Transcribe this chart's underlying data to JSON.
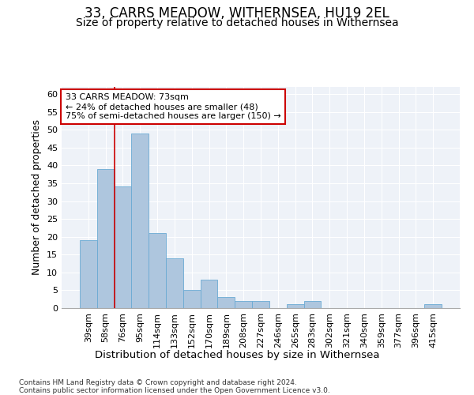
{
  "title": "33, CARRS MEADOW, WITHERNSEA, HU19 2EL",
  "subtitle": "Size of property relative to detached houses in Withernsea",
  "xlabel": "Distribution of detached houses by size in Withernsea",
  "ylabel": "Number of detached properties",
  "categories": [
    "39sqm",
    "58sqm",
    "76sqm",
    "95sqm",
    "114sqm",
    "133sqm",
    "152sqm",
    "170sqm",
    "189sqm",
    "208sqm",
    "227sqm",
    "246sqm",
    "265sqm",
    "283sqm",
    "302sqm",
    "321sqm",
    "340sqm",
    "359sqm",
    "377sqm",
    "396sqm",
    "415sqm"
  ],
  "values": [
    19,
    39,
    34,
    49,
    21,
    14,
    5,
    8,
    3,
    2,
    2,
    0,
    1,
    2,
    0,
    0,
    0,
    0,
    0,
    0,
    1
  ],
  "bar_color": "#aec6de",
  "bar_edge_color": "#6aaad4",
  "line_color": "#cc0000",
  "line_x_index": 1.5,
  "annotation_text": "33 CARRS MEADOW: 73sqm\n← 24% of detached houses are smaller (48)\n75% of semi-detached houses are larger (150) →",
  "annotation_box_facecolor": "#ffffff",
  "annotation_box_edgecolor": "#cc0000",
  "ylim": [
    0,
    62
  ],
  "yticks": [
    0,
    5,
    10,
    15,
    20,
    25,
    30,
    35,
    40,
    45,
    50,
    55,
    60
  ],
  "footer": "Contains HM Land Registry data © Crown copyright and database right 2024.\nContains public sector information licensed under the Open Government Licence v3.0.",
  "background_color": "#eef2f8",
  "title_fontsize": 12,
  "subtitle_fontsize": 10,
  "xlabel_fontsize": 9.5,
  "ylabel_fontsize": 9,
  "tick_fontsize": 8,
  "annotation_fontsize": 8,
  "footer_fontsize": 6.5
}
